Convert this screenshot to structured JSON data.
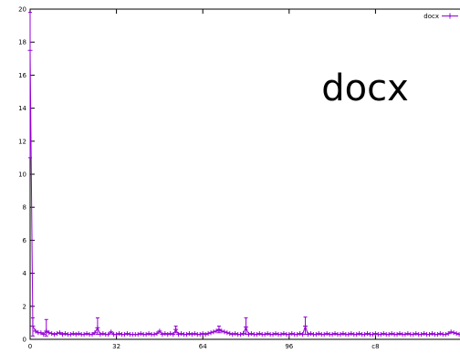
{
  "overlay_title": "docx",
  "chart_data": {
    "type": "line",
    "title": "",
    "xlabel": "",
    "ylabel": "",
    "x_ticks": [
      "0",
      "32",
      "64",
      "96",
      "c8"
    ],
    "y_ticks": [
      "0",
      "2",
      "4",
      "6",
      "8",
      "10",
      "12",
      "14",
      "16",
      "18",
      "20"
    ],
    "xlim": [
      0,
      160
    ],
    "ylim": [
      0,
      20
    ],
    "grid": false,
    "legend_position": "top-right",
    "series": [
      {
        "name": "docx",
        "color": "#9400d3",
        "errorbar": true,
        "x": [
          0,
          1,
          2,
          3,
          4,
          5,
          6,
          7,
          8,
          9,
          10,
          11,
          12,
          13,
          14,
          15,
          16,
          17,
          18,
          19,
          20,
          21,
          22,
          23,
          24,
          25,
          26,
          27,
          28,
          29,
          30,
          31,
          32,
          33,
          34,
          35,
          36,
          37,
          38,
          39,
          40,
          41,
          42,
          43,
          44,
          45,
          46,
          47,
          48,
          49,
          50,
          51,
          52,
          53,
          54,
          55,
          56,
          57,
          58,
          59,
          60,
          61,
          62,
          63,
          64,
          65,
          66,
          67,
          68,
          69,
          70,
          71,
          72,
          73,
          74,
          75,
          76,
          77,
          78,
          79,
          80,
          81,
          82,
          83,
          84,
          85,
          86,
          87,
          88,
          89,
          90,
          91,
          92,
          93,
          94,
          95,
          96,
          97,
          98,
          99,
          100,
          101,
          102,
          103,
          104,
          105,
          106,
          107,
          108,
          109,
          110,
          111,
          112,
          113,
          114,
          115,
          116,
          117,
          118,
          119,
          120,
          121,
          122,
          123,
          124,
          125,
          126,
          127,
          128,
          129,
          130,
          131,
          132,
          133,
          134,
          135,
          136,
          137,
          138,
          139,
          140,
          141,
          142,
          143,
          144,
          145,
          146,
          147,
          148,
          149,
          150,
          151,
          152,
          153,
          154,
          155,
          156,
          157,
          158,
          159
        ],
        "y": [
          17.5,
          0.8,
          0.5,
          0.4,
          0.4,
          0.3,
          0.5,
          0.4,
          0.35,
          0.3,
          0.35,
          0.4,
          0.3,
          0.35,
          0.3,
          0.3,
          0.35,
          0.3,
          0.35,
          0.3,
          0.3,
          0.35,
          0.3,
          0.3,
          0.4,
          0.7,
          0.3,
          0.35,
          0.3,
          0.3,
          0.45,
          0.3,
          0.3,
          0.35,
          0.3,
          0.3,
          0.35,
          0.3,
          0.3,
          0.3,
          0.3,
          0.35,
          0.3,
          0.3,
          0.35,
          0.3,
          0.3,
          0.35,
          0.5,
          0.3,
          0.35,
          0.3,
          0.35,
          0.3,
          0.6,
          0.3,
          0.35,
          0.3,
          0.3,
          0.35,
          0.3,
          0.35,
          0.3,
          0.3,
          0.35,
          0.3,
          0.35,
          0.4,
          0.45,
          0.5,
          0.6,
          0.5,
          0.45,
          0.4,
          0.35,
          0.3,
          0.35,
          0.3,
          0.3,
          0.35,
          0.75,
          0.3,
          0.35,
          0.3,
          0.3,
          0.35,
          0.3,
          0.3,
          0.35,
          0.3,
          0.3,
          0.35,
          0.3,
          0.3,
          0.35,
          0.3,
          0.3,
          0.35,
          0.3,
          0.3,
          0.35,
          0.3,
          0.8,
          0.3,
          0.35,
          0.3,
          0.3,
          0.35,
          0.3,
          0.3,
          0.35,
          0.3,
          0.3,
          0.35,
          0.3,
          0.3,
          0.35,
          0.3,
          0.3,
          0.35,
          0.3,
          0.3,
          0.35,
          0.3,
          0.3,
          0.35,
          0.3,
          0.3,
          0.35,
          0.3,
          0.3,
          0.35,
          0.3,
          0.3,
          0.35,
          0.3,
          0.3,
          0.35,
          0.3,
          0.3,
          0.35,
          0.3,
          0.3,
          0.35,
          0.3,
          0.3,
          0.35,
          0.3,
          0.3,
          0.35,
          0.3,
          0.3,
          0.35,
          0.3,
          0.3,
          0.35,
          0.45,
          0.4,
          0.35,
          0.3
        ]
      }
    ],
    "errorbars": [
      {
        "x": 0,
        "low": 11,
        "high": 19.8
      },
      {
        "x": 1,
        "low": 0.2,
        "high": 1.3
      },
      {
        "x": 6,
        "low": 0.2,
        "high": 1.2
      },
      {
        "x": 25,
        "low": 0.3,
        "high": 1.3
      },
      {
        "x": 80,
        "low": 0.3,
        "high": 1.3
      },
      {
        "x": 102,
        "low": 0.3,
        "high": 1.35
      },
      {
        "x": 54,
        "low": 0.4,
        "high": 0.8
      },
      {
        "x": 70,
        "low": 0.4,
        "high": 0.8
      }
    ]
  }
}
